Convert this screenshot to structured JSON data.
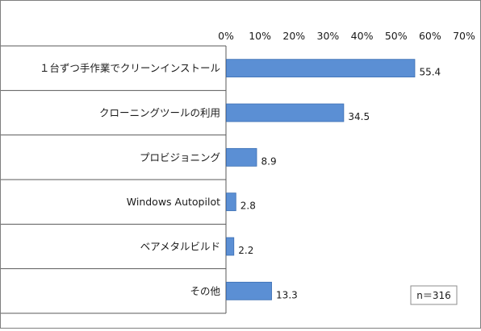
{
  "chart_data": {
    "type": "bar",
    "orientation": "horizontal",
    "categories": [
      "１台ずつ手作業でクリーンインストール",
      "クローニングツールの利用",
      "プロビジョニング",
      "Windows Autopilot",
      "ベアメタルビルド",
      "その他"
    ],
    "values": [
      55.4,
      34.5,
      8.9,
      2.8,
      2.2,
      13.3
    ],
    "value_labels": [
      "55.4",
      "34.5",
      "8.9",
      "2.8",
      "2.2",
      "13.3"
    ],
    "xlim": [
      0,
      70
    ],
    "xticks": [
      0,
      10,
      20,
      30,
      40,
      50,
      60,
      70
    ],
    "xtick_labels": [
      "0%",
      "10%",
      "20%",
      "30%",
      "40%",
      "50%",
      "60%",
      "70%"
    ],
    "xaxis_position": "top",
    "grid": false,
    "bar_color": "#5b8fd4",
    "bar_edge_color": "#3d6fb3",
    "row_separator_color": "#595959",
    "annotation": "n＝316"
  }
}
